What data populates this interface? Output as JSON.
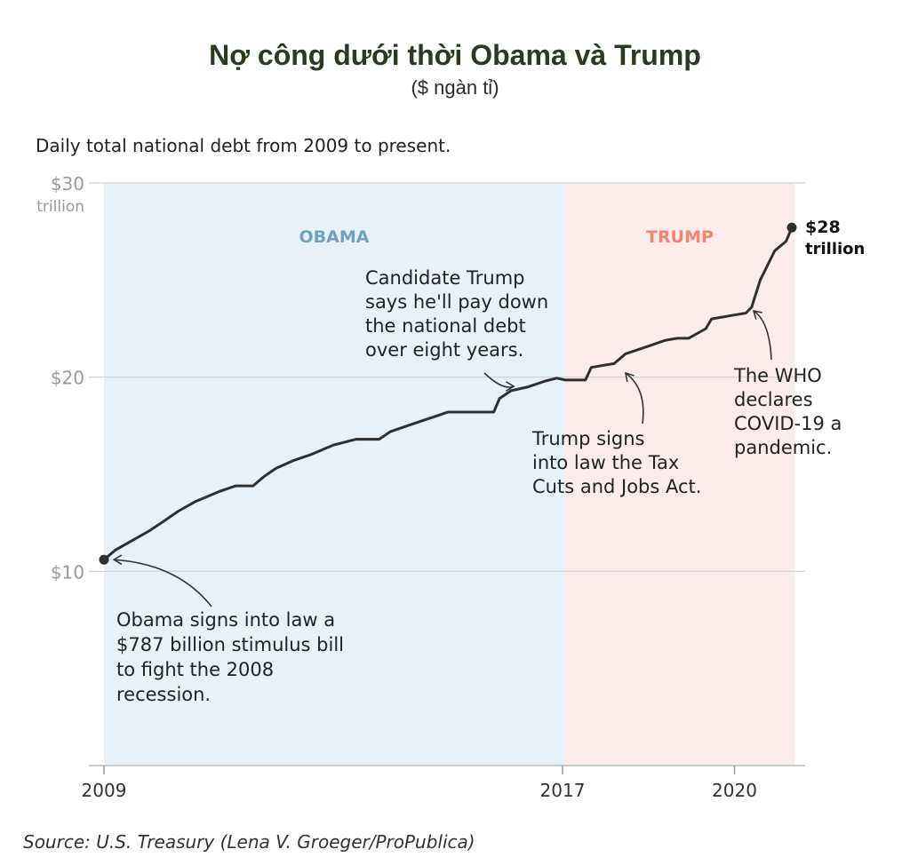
{
  "header": {
    "title": "Nợ công dưới thời Obama và Trump",
    "subtitle": "($ ngàn tỉ)",
    "description": "Daily total national debt from 2009 to present."
  },
  "footer": {
    "source": "Source: U.S. Treasury (Lena V. Groeger/ProPublica)"
  },
  "chart_data": {
    "type": "line",
    "title": "Nợ công dưới thời Obama và Trump",
    "subtitle": "($ ngàn tỉ)",
    "xlabel": "",
    "ylabel": "",
    "xlim": [
      2009.0,
      2021.2
    ],
    "ylim": [
      0,
      30
    ],
    "y_ticks": [
      {
        "value": 30,
        "label": "$30",
        "sublabel": "trillion"
      },
      {
        "value": 20,
        "label": "$20"
      },
      {
        "value": 10,
        "label": "$10"
      }
    ],
    "x_ticks": [
      {
        "value": 2009,
        "label": "2009"
      },
      {
        "value": 2017,
        "label": "2017"
      },
      {
        "value": 2020,
        "label": "2020"
      }
    ],
    "grid": "horizontal",
    "legend": "none",
    "periods": [
      {
        "label": "OBAMA",
        "start": 2009.0,
        "end": 2017.05,
        "color": "#e8f0f8",
        "label_color": "#6aa3c4"
      },
      {
        "label": "TRUMP",
        "start": 2017.05,
        "end": 2021.05,
        "color": "#fbeceb",
        "label_color": "#f0846c"
      }
    ],
    "series": [
      {
        "color": "#2f2f2f",
        "x": [
          2009.0,
          2009.2,
          2009.5,
          2009.8,
          2010.0,
          2010.3,
          2010.6,
          2011.0,
          2011.3,
          2011.6,
          2011.8,
          2012.0,
          2012.3,
          2012.6,
          2013.0,
          2013.4,
          2013.8,
          2014.0,
          2014.4,
          2014.8,
          2015.0,
          2015.4,
          2015.8,
          2015.9,
          2016.1,
          2016.4,
          2016.7,
          2016.9,
          2017.05,
          2017.4,
          2017.5,
          2017.9,
          2018.1,
          2018.4,
          2018.8,
          2019.0,
          2019.2,
          2019.5,
          2019.6,
          2020.0,
          2020.2,
          2020.3,
          2020.45,
          2020.7,
          2020.9,
          2021.0
        ],
        "y": [
          10.6,
          11.1,
          11.6,
          12.1,
          12.5,
          13.1,
          13.6,
          14.1,
          14.4,
          14.4,
          14.9,
          15.3,
          15.7,
          16.0,
          16.5,
          16.8,
          16.8,
          17.2,
          17.6,
          18.0,
          18.2,
          18.2,
          18.2,
          18.9,
          19.3,
          19.5,
          19.8,
          19.95,
          19.85,
          19.85,
          20.5,
          20.7,
          21.2,
          21.5,
          21.9,
          22.0,
          22.0,
          22.5,
          23.0,
          23.2,
          23.3,
          23.6,
          25.0,
          26.5,
          27.0,
          27.7
        ]
      }
    ],
    "end_label": {
      "value": "$28",
      "unit": "trillion"
    },
    "annotations": [
      {
        "id": "obama",
        "text": [
          "Obama signs into law a",
          "$787 billion stimulus bill",
          "to fight the 2008",
          "recession."
        ],
        "point": {
          "x": 2009.05,
          "y": 10.6
        }
      },
      {
        "id": "candidate",
        "text": [
          "Candidate Trump",
          "says he'll pay down",
          "the national debt",
          "over eight years."
        ],
        "point": {
          "x": 2016.2,
          "y": 19.4
        }
      },
      {
        "id": "taxcut",
        "text": [
          "Trump signs",
          "into law the Tax",
          "Cuts and Jobs Act."
        ],
        "point": {
          "x": 2017.9,
          "y": 20.2
        }
      },
      {
        "id": "covid",
        "text": [
          "The WHO",
          "declares",
          "COVID-19 a",
          "pandemic."
        ],
        "point": {
          "x": 2020.3,
          "y": 23.1
        }
      }
    ]
  }
}
